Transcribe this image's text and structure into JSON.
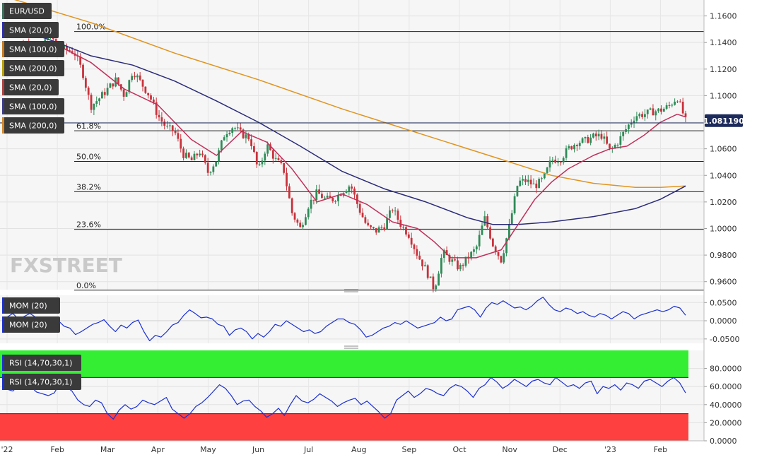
{
  "chart_data": [
    {
      "type": "line",
      "panel": "price",
      "instrument": "EUR/USD",
      "chart_style": "candlestick",
      "watermark": "FXSTREET",
      "current_price": "1.081190",
      "ylim": [
        0.954,
        1.172
      ],
      "y_ticks": [
        "1.1600",
        "1.1400",
        "1.1200",
        "1.1000",
        "1.0800",
        "1.0600",
        "1.0400",
        "1.0200",
        "1.0000",
        "0.9800",
        "0.9600"
      ],
      "y_tick_values": [
        1.16,
        1.14,
        1.12,
        1.1,
        1.08,
        1.06,
        1.04,
        1.02,
        1.0,
        0.98,
        0.96
      ],
      "legend": [
        "EUR/USD",
        "SMA (20,0)",
        "SMA (100,0)",
        "SMA (200,0)",
        "SMA (20,0)",
        "SMA (100,0)",
        "SMA (200,0)"
      ],
      "legend_colors": [
        "#3c6e5a",
        "#2b2bb0",
        "#c87a1e",
        "#b8a000",
        "#b04040",
        "#3a3a8a",
        "#d4882a"
      ],
      "fibonacci": [
        {
          "label": "100.0%",
          "value": 1.1483
        },
        {
          "label": "61.8%",
          "value": 1.0736
        },
        {
          "label": "50.0%",
          "value": 1.0505
        },
        {
          "label": "38.2%",
          "value": 1.0277
        },
        {
          "label": "23.6%",
          "value": 0.9994
        },
        {
          "label": "0.0%",
          "value": 0.9536
        }
      ],
      "price_path": [
        [
          0,
          1.131
        ],
        [
          2,
          1.14
        ],
        [
          4,
          1.132
        ],
        [
          5,
          1.1483
        ],
        [
          6,
          1.136
        ],
        [
          8,
          1.133
        ],
        [
          9,
          1.118
        ],
        [
          10,
          1.092
        ],
        [
          11,
          1.098
        ],
        [
          13,
          1.112
        ],
        [
          14,
          1.1
        ],
        [
          15,
          1.119
        ],
        [
          17,
          1.1
        ],
        [
          18,
          1.085
        ],
        [
          19,
          1.076
        ],
        [
          20,
          1.073
        ],
        [
          21,
          1.056
        ],
        [
          22,
          1.051
        ],
        [
          23,
          1.058
        ],
        [
          24,
          1.042
        ],
        [
          25,
          1.052
        ],
        [
          26,
          1.072
        ],
        [
          27,
          1.077
        ],
        [
          28,
          1.071
        ],
        [
          29,
          1.068
        ],
        [
          30,
          1.043
        ],
        [
          31,
          1.063
        ],
        [
          32,
          1.052
        ],
        [
          33,
          1.045
        ],
        [
          34,
          1.012
        ],
        [
          35,
          1.0
        ],
        [
          36,
          1.018
        ],
        [
          37,
          1.027
        ],
        [
          38,
          1.022
        ],
        [
          39,
          1.022
        ],
        [
          40,
          1.028
        ],
        [
          41,
          1.033
        ],
        [
          42,
          1.015
        ],
        [
          43,
          1.001
        ],
        [
          44,
          0.998
        ],
        [
          45,
          1.002
        ],
        [
          46,
          1.015
        ],
        [
          47,
          1.003
        ],
        [
          48,
          0.995
        ],
        [
          49,
          0.98
        ],
        [
          50,
          0.969
        ],
        [
          51,
          0.954
        ],
        [
          52,
          0.982
        ],
        [
          53,
          0.976
        ],
        [
          54,
          0.97
        ],
        [
          55,
          0.978
        ],
        [
          56,
          0.985
        ],
        [
          57,
          1.008
        ],
        [
          58,
          0.988
        ],
        [
          59,
          0.976
        ],
        [
          60,
          1.003
        ],
        [
          61,
          1.035
        ],
        [
          62,
          1.036
        ],
        [
          63,
          1.032
        ],
        [
          64,
          1.037
        ],
        [
          65,
          1.052
        ],
        [
          66,
          1.052
        ],
        [
          67,
          1.06
        ],
        [
          68,
          1.065
        ],
        [
          69,
          1.066
        ],
        [
          70,
          1.069
        ],
        [
          71,
          1.07
        ],
        [
          72,
          1.058
        ],
        [
          73,
          1.066
        ],
        [
          74,
          1.076
        ],
        [
          75,
          1.085
        ],
        [
          76,
          1.086
        ],
        [
          77,
          1.088
        ],
        [
          78,
          1.089
        ],
        [
          79,
          1.092
        ],
        [
          80,
          1.099
        ],
        [
          81,
          1.081
        ]
      ],
      "sma_20": [
        [
          0,
          1.13
        ],
        [
          6,
          1.138
        ],
        [
          10,
          1.125
        ],
        [
          14,
          1.105
        ],
        [
          18,
          1.093
        ],
        [
          22,
          1.067
        ],
        [
          25,
          1.055
        ],
        [
          28,
          1.073
        ],
        [
          31,
          1.065
        ],
        [
          34,
          1.045
        ],
        [
          37,
          1.02
        ],
        [
          40,
          1.026
        ],
        [
          43,
          1.018
        ],
        [
          46,
          1.005
        ],
        [
          49,
          1.0
        ],
        [
          51,
          0.99
        ],
        [
          53,
          0.978
        ],
        [
          56,
          0.978
        ],
        [
          59,
          0.984
        ],
        [
          61,
          1.003
        ],
        [
          63,
          1.022
        ],
        [
          65,
          1.035
        ],
        [
          67,
          1.045
        ],
        [
          70,
          1.055
        ],
        [
          72,
          1.06
        ],
        [
          74,
          1.062
        ],
        [
          76,
          1.07
        ],
        [
          78,
          1.08
        ],
        [
          80,
          1.086
        ],
        [
          81,
          1.084
        ]
      ],
      "sma_100": [
        [
          0,
          1.153
        ],
        [
          6,
          1.14
        ],
        [
          10,
          1.13
        ],
        [
          15,
          1.123
        ],
        [
          20,
          1.111
        ],
        [
          25,
          1.096
        ],
        [
          30,
          1.08
        ],
        [
          35,
          1.062
        ],
        [
          40,
          1.043
        ],
        [
          45,
          1.03
        ],
        [
          50,
          1.02
        ],
        [
          55,
          1.008
        ],
        [
          58,
          1.003
        ],
        [
          61,
          1.003
        ],
        [
          65,
          1.005
        ],
        [
          70,
          1.009
        ],
        [
          75,
          1.015
        ],
        [
          78,
          1.022
        ],
        [
          81,
          1.032
        ]
      ],
      "sma_200": [
        [
          0,
          1.174
        ],
        [
          10,
          1.155
        ],
        [
          20,
          1.132
        ],
        [
          30,
          1.112
        ],
        [
          40,
          1.09
        ],
        [
          50,
          1.07
        ],
        [
          60,
          1.05
        ],
        [
          65,
          1.04
        ],
        [
          70,
          1.034
        ],
        [
          75,
          1.031
        ],
        [
          78,
          1.031
        ],
        [
          81,
          1.032
        ]
      ]
    },
    {
      "type": "line",
      "panel": "momentum",
      "legend": [
        "MOM (20)",
        "MOM (20)"
      ],
      "ylim": [
        -0.062,
        0.07
      ],
      "y_ticks": [
        "0.0500",
        "0.0000",
        "-0.0500"
      ],
      "y_tick_values": [
        0.05,
        0.0,
        -0.05
      ],
      "values": [
        0.01,
        0.02,
        0.005,
        0.012,
        0.02,
        0.01,
        0.005,
        -0.005,
        0.008,
        0.0,
        -0.015,
        -0.02,
        -0.038,
        -0.03,
        -0.02,
        -0.01,
        -0.005,
        0.003,
        -0.015,
        -0.03,
        -0.012,
        -0.02,
        -0.005,
        0.002,
        -0.03,
        -0.055,
        -0.04,
        -0.045,
        -0.03,
        -0.012,
        -0.005,
        0.015,
        0.03,
        0.02,
        0.008,
        0.01,
        0.005,
        -0.01,
        -0.015,
        -0.04,
        -0.025,
        -0.02,
        -0.03,
        -0.05,
        -0.035,
        -0.045,
        -0.03,
        -0.01,
        -0.015,
        0.0,
        -0.01,
        -0.02,
        -0.03,
        -0.025,
        -0.035,
        -0.03,
        -0.015,
        -0.005,
        0.005,
        0.005,
        -0.005,
        -0.01,
        -0.025,
        -0.045,
        -0.04,
        -0.03,
        -0.02,
        -0.015,
        -0.005,
        -0.01,
        0.0,
        -0.01,
        -0.02,
        -0.015,
        -0.01,
        -0.005,
        0.01,
        0.0,
        0.005,
        0.03,
        0.035,
        0.04,
        0.03,
        0.01,
        0.035,
        0.05,
        0.045,
        0.055,
        0.045,
        0.035,
        0.038,
        0.03,
        0.04,
        0.055,
        0.065,
        0.045,
        0.03,
        0.025,
        0.035,
        0.03,
        0.02,
        0.025,
        0.015,
        0.01,
        0.02,
        0.015,
        0.005,
        0.015,
        0.025,
        0.02,
        0.005,
        0.015,
        0.02,
        0.025,
        0.03,
        0.025,
        0.03,
        0.04,
        0.035,
        0.015
      ]
    },
    {
      "type": "line",
      "panel": "rsi",
      "legend": [
        "RSI (14,70,30,1)",
        "RSI (14,70,30,1)"
      ],
      "ylim": [
        0,
        100
      ],
      "y_ticks": [
        "80.0000",
        "60.0000",
        "40.0000",
        "20.0000",
        "0.0000"
      ],
      "y_tick_values": [
        80,
        60,
        40,
        20,
        0
      ],
      "overbought": 70,
      "oversold": 30,
      "zone_colors": {
        "overbought": "#33ee33",
        "oversold": "#ff4040"
      },
      "values": [
        57,
        55,
        62,
        58,
        60,
        54,
        52,
        50,
        53,
        64,
        60,
        55,
        45,
        40,
        38,
        45,
        42,
        30,
        24,
        34,
        40,
        35,
        38,
        45,
        42,
        40,
        44,
        48,
        35,
        30,
        25,
        30,
        38,
        42,
        48,
        55,
        62,
        58,
        50,
        40,
        44,
        45,
        38,
        33,
        26,
        30,
        36,
        28,
        40,
        50,
        44,
        42,
        46,
        52,
        48,
        44,
        38,
        42,
        45,
        47,
        40,
        44,
        38,
        32,
        25,
        30,
        45,
        50,
        55,
        48,
        52,
        58,
        56,
        52,
        50,
        58,
        62,
        60,
        55,
        48,
        58,
        62,
        70,
        65,
        58,
        62,
        68,
        64,
        60,
        66,
        68,
        64,
        62,
        70,
        65,
        60,
        62,
        58,
        64,
        66,
        52,
        60,
        58,
        62,
        56,
        64,
        62,
        58,
        66,
        68,
        64,
        60,
        66,
        70,
        64,
        53
      ]
    }
  ],
  "x_axis": {
    "labels": [
      "'22",
      "Feb",
      "Mar",
      "Apr",
      "May",
      "Jun",
      "Jul",
      "Aug",
      "Sep",
      "Oct",
      "Nov",
      "Dec",
      "'23",
      "Feb"
    ],
    "x_index": [
      0,
      6,
      12,
      18,
      24,
      30,
      36,
      42,
      48,
      54,
      60,
      66,
      72,
      78
    ]
  },
  "colors": {
    "bull": "#2e8b57",
    "bear": "#c8323c",
    "sma20": "#c0305a",
    "sma100": "#2a2a78",
    "sma200": "#e0941e",
    "momentum": "#1a2fd0",
    "rsi": "#1a2fd0",
    "label_bg": "#3a3a3a",
    "price_badge": "#1c2a5c"
  }
}
